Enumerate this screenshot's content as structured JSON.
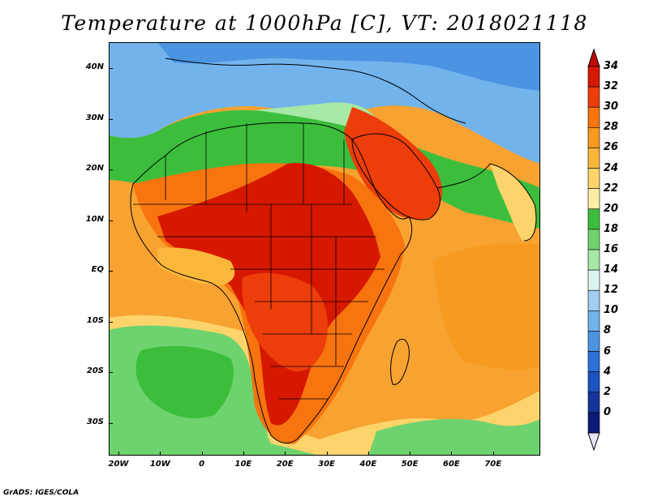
{
  "title": "Temperature at 1000hPa [C], VT: 2018021118",
  "footer": "GrADS: IGES/COLA",
  "axes": {
    "lat_labels": [
      "40N",
      "30N",
      "20N",
      "10N",
      "EQ",
      "10S",
      "20S",
      "30S"
    ],
    "lon_labels": [
      "20W",
      "10W",
      "0",
      "10E",
      "20E",
      "30E",
      "40E",
      "50E",
      "60E",
      "70E"
    ]
  },
  "colorbar": {
    "unit": "C",
    "labels": [
      "34",
      "32",
      "30",
      "28",
      "26",
      "24",
      "22",
      "20",
      "18",
      "16",
      "14",
      "12",
      "10",
      "8",
      "6",
      "4",
      "2",
      "0"
    ],
    "colors": [
      "#d61800",
      "#ec3d0a",
      "#f7740f",
      "#f79a20",
      "#fab73c",
      "#fcd46b",
      "#fbeda2",
      "#3cbe3c",
      "#6ed36e",
      "#a6e8a6",
      "#dbf4f0",
      "#a2cef0",
      "#72b3ec",
      "#4c94e2",
      "#2c71d6",
      "#1c52be",
      "#15349a",
      "#0b1a76"
    ],
    "over_color": "#c00a00",
    "under_color": "#e8e4fc"
  },
  "field_colors": {
    "ocean_warm": "#f7a231",
    "ocean_mild": "#fab73c",
    "ocean_cool": "#fcd46b",
    "ocean_cold": "#6ed36e",
    "sahara": "#f7740f",
    "hot_core": "#d61800",
    "north_cold": "#4c94e2",
    "med": "#a6e8a6"
  }
}
